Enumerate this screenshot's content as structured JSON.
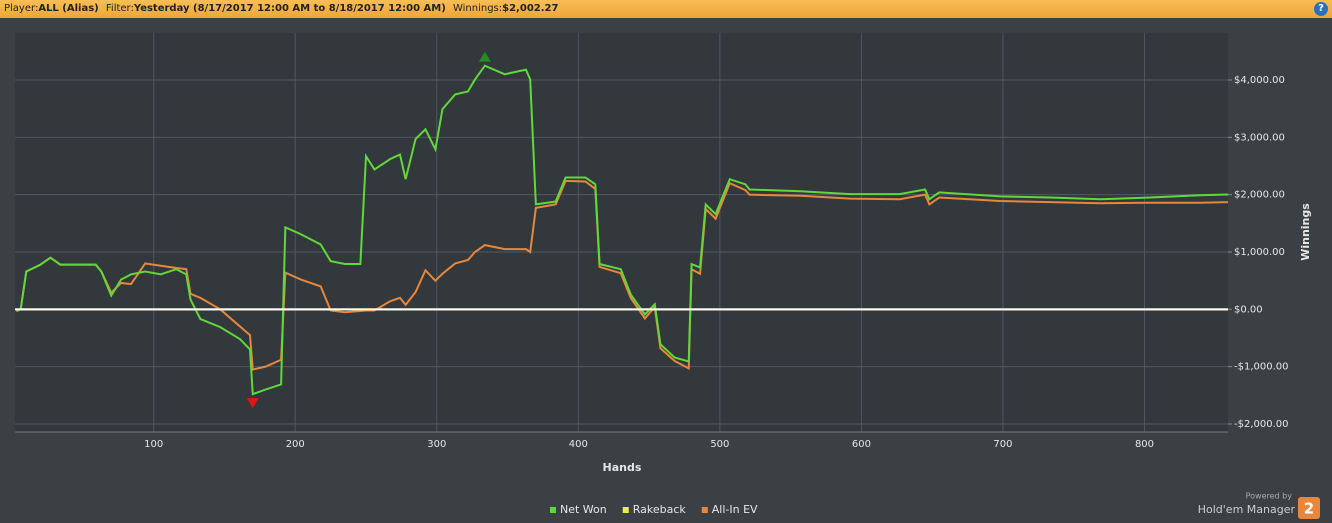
{
  "header": {
    "player_label": "Player:",
    "player": "ALL (Alias)",
    "filter_label": "Filter:",
    "filter": "Yesterday (8/17/2017 12:00 AM to 8/18/2017 12:00 AM)",
    "winnings_label": "Winnings:",
    "winnings": "$2,002.27",
    "help": "?"
  },
  "chart_data": {
    "type": "line",
    "x_label": "Hands",
    "y_label": "Winnings",
    "x": [
      3,
      6,
      10,
      20,
      27,
      34,
      48,
      59,
      63,
      70,
      77,
      84,
      94,
      105,
      116,
      123,
      126,
      133,
      147,
      161,
      168,
      170,
      179,
      190,
      193,
      204,
      218,
      225,
      235,
      246,
      250,
      256,
      267,
      274,
      278,
      285,
      292,
      299,
      304,
      313,
      322,
      327,
      334,
      348,
      363,
      366,
      370,
      384,
      391,
      405,
      412,
      415,
      430,
      437,
      447,
      454,
      458,
      468,
      478,
      480,
      486,
      490,
      497,
      507,
      518,
      521,
      557,
      592,
      627,
      645,
      648,
      655,
      698,
      733,
      769,
      804,
      839,
      859
    ],
    "series": [
      {
        "name": "Net Won",
        "color": "#5fd83a",
        "values": [
          -30,
          0,
          660,
          780,
          900,
          780,
          780,
          780,
          660,
          240,
          520,
          610,
          660,
          610,
          700,
          610,
          170,
          -170,
          -310,
          -520,
          -700,
          -1480,
          -1400,
          -1310,
          1430,
          1310,
          1130,
          840,
          790,
          790,
          2670,
          2440,
          2620,
          2700,
          2270,
          2970,
          3140,
          2790,
          3490,
          3750,
          3800,
          4010,
          4250,
          4100,
          4180,
          4010,
          1830,
          1880,
          2300,
          2300,
          2180,
          790,
          700,
          260,
          -90,
          90,
          -610,
          -840,
          -910,
          790,
          730,
          1830,
          1660,
          2270,
          2180,
          2090,
          2060,
          2010,
          2010,
          2090,
          1920,
          2040,
          1970,
          1950,
          1920,
          1950,
          1990,
          2002.27
        ]
      },
      {
        "name": "Rakeback",
        "color": "#ecec4a",
        "values": [
          0,
          0,
          0,
          0,
          0,
          0,
          0,
          0,
          0,
          0,
          0,
          0,
          0,
          0,
          0,
          0,
          0,
          0,
          0,
          0,
          0,
          0,
          0,
          0,
          0,
          0,
          0,
          0,
          0,
          0,
          0,
          0,
          0,
          0,
          0,
          0,
          0,
          0,
          0,
          0,
          0,
          0,
          0,
          0,
          0,
          0,
          0,
          0,
          0,
          0,
          0,
          0,
          0,
          0,
          0,
          0,
          0,
          0,
          0,
          0,
          0,
          0,
          0,
          0,
          0,
          0,
          0,
          0,
          0,
          0,
          0,
          0,
          0,
          0,
          0,
          0,
          0,
          0
        ]
      },
      {
        "name": "All-In EV",
        "color": "#e8873a",
        "values": [
          -30,
          0,
          660,
          780,
          900,
          780,
          780,
          780,
          660,
          290,
          460,
          440,
          800,
          760,
          720,
          700,
          270,
          200,
          0,
          -300,
          -450,
          -1050,
          -1000,
          -880,
          640,
          520,
          400,
          -20,
          -50,
          -30,
          -20,
          -20,
          140,
          200,
          80,
          300,
          680,
          500,
          620,
          800,
          860,
          1000,
          1120,
          1050,
          1050,
          1000,
          1770,
          1830,
          2240,
          2230,
          2100,
          740,
          630,
          200,
          -160,
          40,
          -680,
          -900,
          -1030,
          700,
          620,
          1750,
          1580,
          2200,
          2080,
          2000,
          1980,
          1930,
          1920,
          2000,
          1830,
          1950,
          1890,
          1870,
          1850,
          1860,
          1860,
          1870
        ]
      }
    ],
    "xlim": [
      2,
      859
    ],
    "xticks": [
      100,
      200,
      300,
      400,
      500,
      600,
      700,
      800
    ],
    "ylim": [
      -2140,
      4820
    ],
    "yticks": [
      {
        "value": -2000,
        "label": "-$2,000.00"
      },
      {
        "value": -1000,
        "label": "-$1,000.00"
      },
      {
        "value": 0,
        "label": "$0.00"
      },
      {
        "value": 1000,
        "label": "$1,000.00"
      },
      {
        "value": 2000,
        "label": "$2,000.00"
      },
      {
        "value": 3000,
        "label": "$3,000.00"
      },
      {
        "value": 4000,
        "label": "$4,000.00"
      }
    ],
    "grid": true,
    "zero_line_color": "#ffffff",
    "peak_color": "#1f8f1f",
    "trough_color": "#e01414",
    "legend": "bottom"
  },
  "branding": {
    "powered": "Powered by",
    "product": "Hold'em Manager",
    "version": "2"
  }
}
